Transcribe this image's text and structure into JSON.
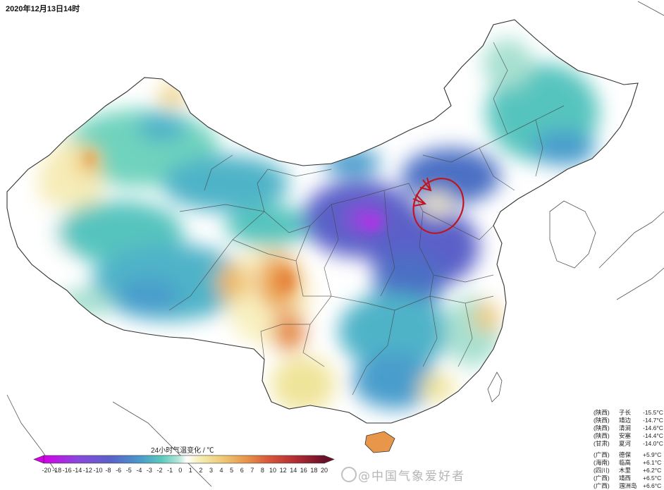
{
  "map": {
    "title": "2020年12月13日14时",
    "scale_title": "24小时气温变化 / ℃",
    "scale_ticks": [
      "-20",
      "-18",
      "-16",
      "-14",
      "-12",
      "-10",
      "-8",
      "-6",
      "-5",
      "-4",
      "-3",
      "-2",
      "-1",
      "0",
      "1",
      "2",
      "3",
      "4",
      "5",
      "6",
      "7",
      "8",
      "10",
      "12",
      "14",
      "16",
      "18",
      "20"
    ],
    "scale_colors": [
      "#d400e8",
      "#b62ee8",
      "#9a3fe0",
      "#7d4cd8",
      "#6a55d0",
      "#5a60c8",
      "#4c6fc4",
      "#4585c8",
      "#4a9dcc",
      "#4fb3c8",
      "#56c4be",
      "#6ed0b8",
      "#a7e0d0",
      "#ffffff",
      "#f8f0c0",
      "#f0e49a",
      "#eed080",
      "#f0b860",
      "#eba050",
      "#e4843e",
      "#dc6a38",
      "#d24e32",
      "#c43a32",
      "#b22a32",
      "#9c1e34",
      "#86162e",
      "#6c1028"
    ],
    "cooling_stations": [
      {
        "province": "(陕西)",
        "station": "子长",
        "value": "-15.5°C"
      },
      {
        "province": "(陕西)",
        "station": "靖边",
        "value": "-14.7°C"
      },
      {
        "province": "(陕西)",
        "station": "清涧",
        "value": "-14.6°C"
      },
      {
        "province": "(陕西)",
        "station": "安塞",
        "value": "-14.4°C"
      },
      {
        "province": "(甘肃)",
        "station": "夏河",
        "value": "-14.0°C"
      }
    ],
    "warming_stations": [
      {
        "province": "(广西)",
        "station": "德保",
        "value": "+5.9°C"
      },
      {
        "province": "(海南)",
        "station": "临高",
        "value": "+6.1°C"
      },
      {
        "province": "(四川)",
        "station": "木里",
        "value": "+6.2°C"
      },
      {
        "province": "(广西)",
        "station": "靖西",
        "value": "+6.5°C"
      },
      {
        "province": "(广西)",
        "station": "涠洲岛",
        "value": "+6.6°C"
      }
    ],
    "watermark": "@中国气象爱好者"
  }
}
